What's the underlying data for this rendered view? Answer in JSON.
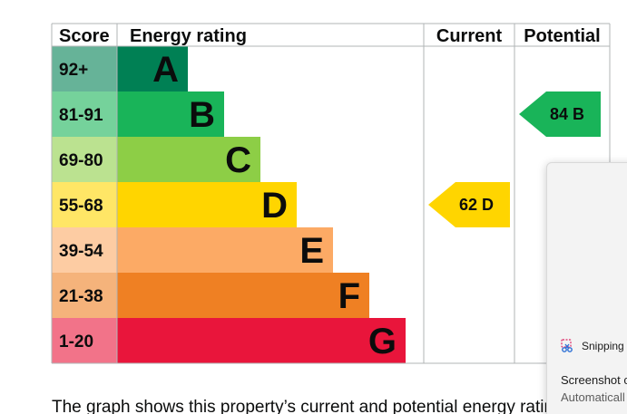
{
  "chart_data": {
    "type": "bar",
    "headers": {
      "score": "Score",
      "rating": "Energy rating",
      "current": "Current",
      "potential": "Potential"
    },
    "bands": [
      {
        "score_range": "92+",
        "letter": "A",
        "color": "#008054",
        "min": 92,
        "max": 100
      },
      {
        "score_range": "81-91",
        "letter": "B",
        "color": "#19b459",
        "min": 81,
        "max": 91
      },
      {
        "score_range": "69-80",
        "letter": "C",
        "color": "#8dce46",
        "min": 69,
        "max": 80
      },
      {
        "score_range": "55-68",
        "letter": "D",
        "color": "#ffd500",
        "min": 55,
        "max": 68
      },
      {
        "score_range": "39-54",
        "letter": "E",
        "color": "#fcaa65",
        "min": 39,
        "max": 54
      },
      {
        "score_range": "21-38",
        "letter": "F",
        "color": "#ef8023",
        "min": 21,
        "max": 38
      },
      {
        "score_range": "1-20",
        "letter": "G",
        "color": "#e9153b",
        "min": 1,
        "max": 20
      }
    ],
    "current": {
      "value": 62,
      "letter": "D",
      "label": "62  D",
      "color": "#ffd500"
    },
    "potential": {
      "value": 84,
      "letter": "B",
      "label": "84  B",
      "color": "#19b459"
    }
  },
  "caption": "The graph shows this property’s current and potential energy rating",
  "toast": {
    "app_name": "Snipping",
    "title": "Screenshot c",
    "body": "Automaticall",
    "app_icon": "scissors-icon"
  }
}
